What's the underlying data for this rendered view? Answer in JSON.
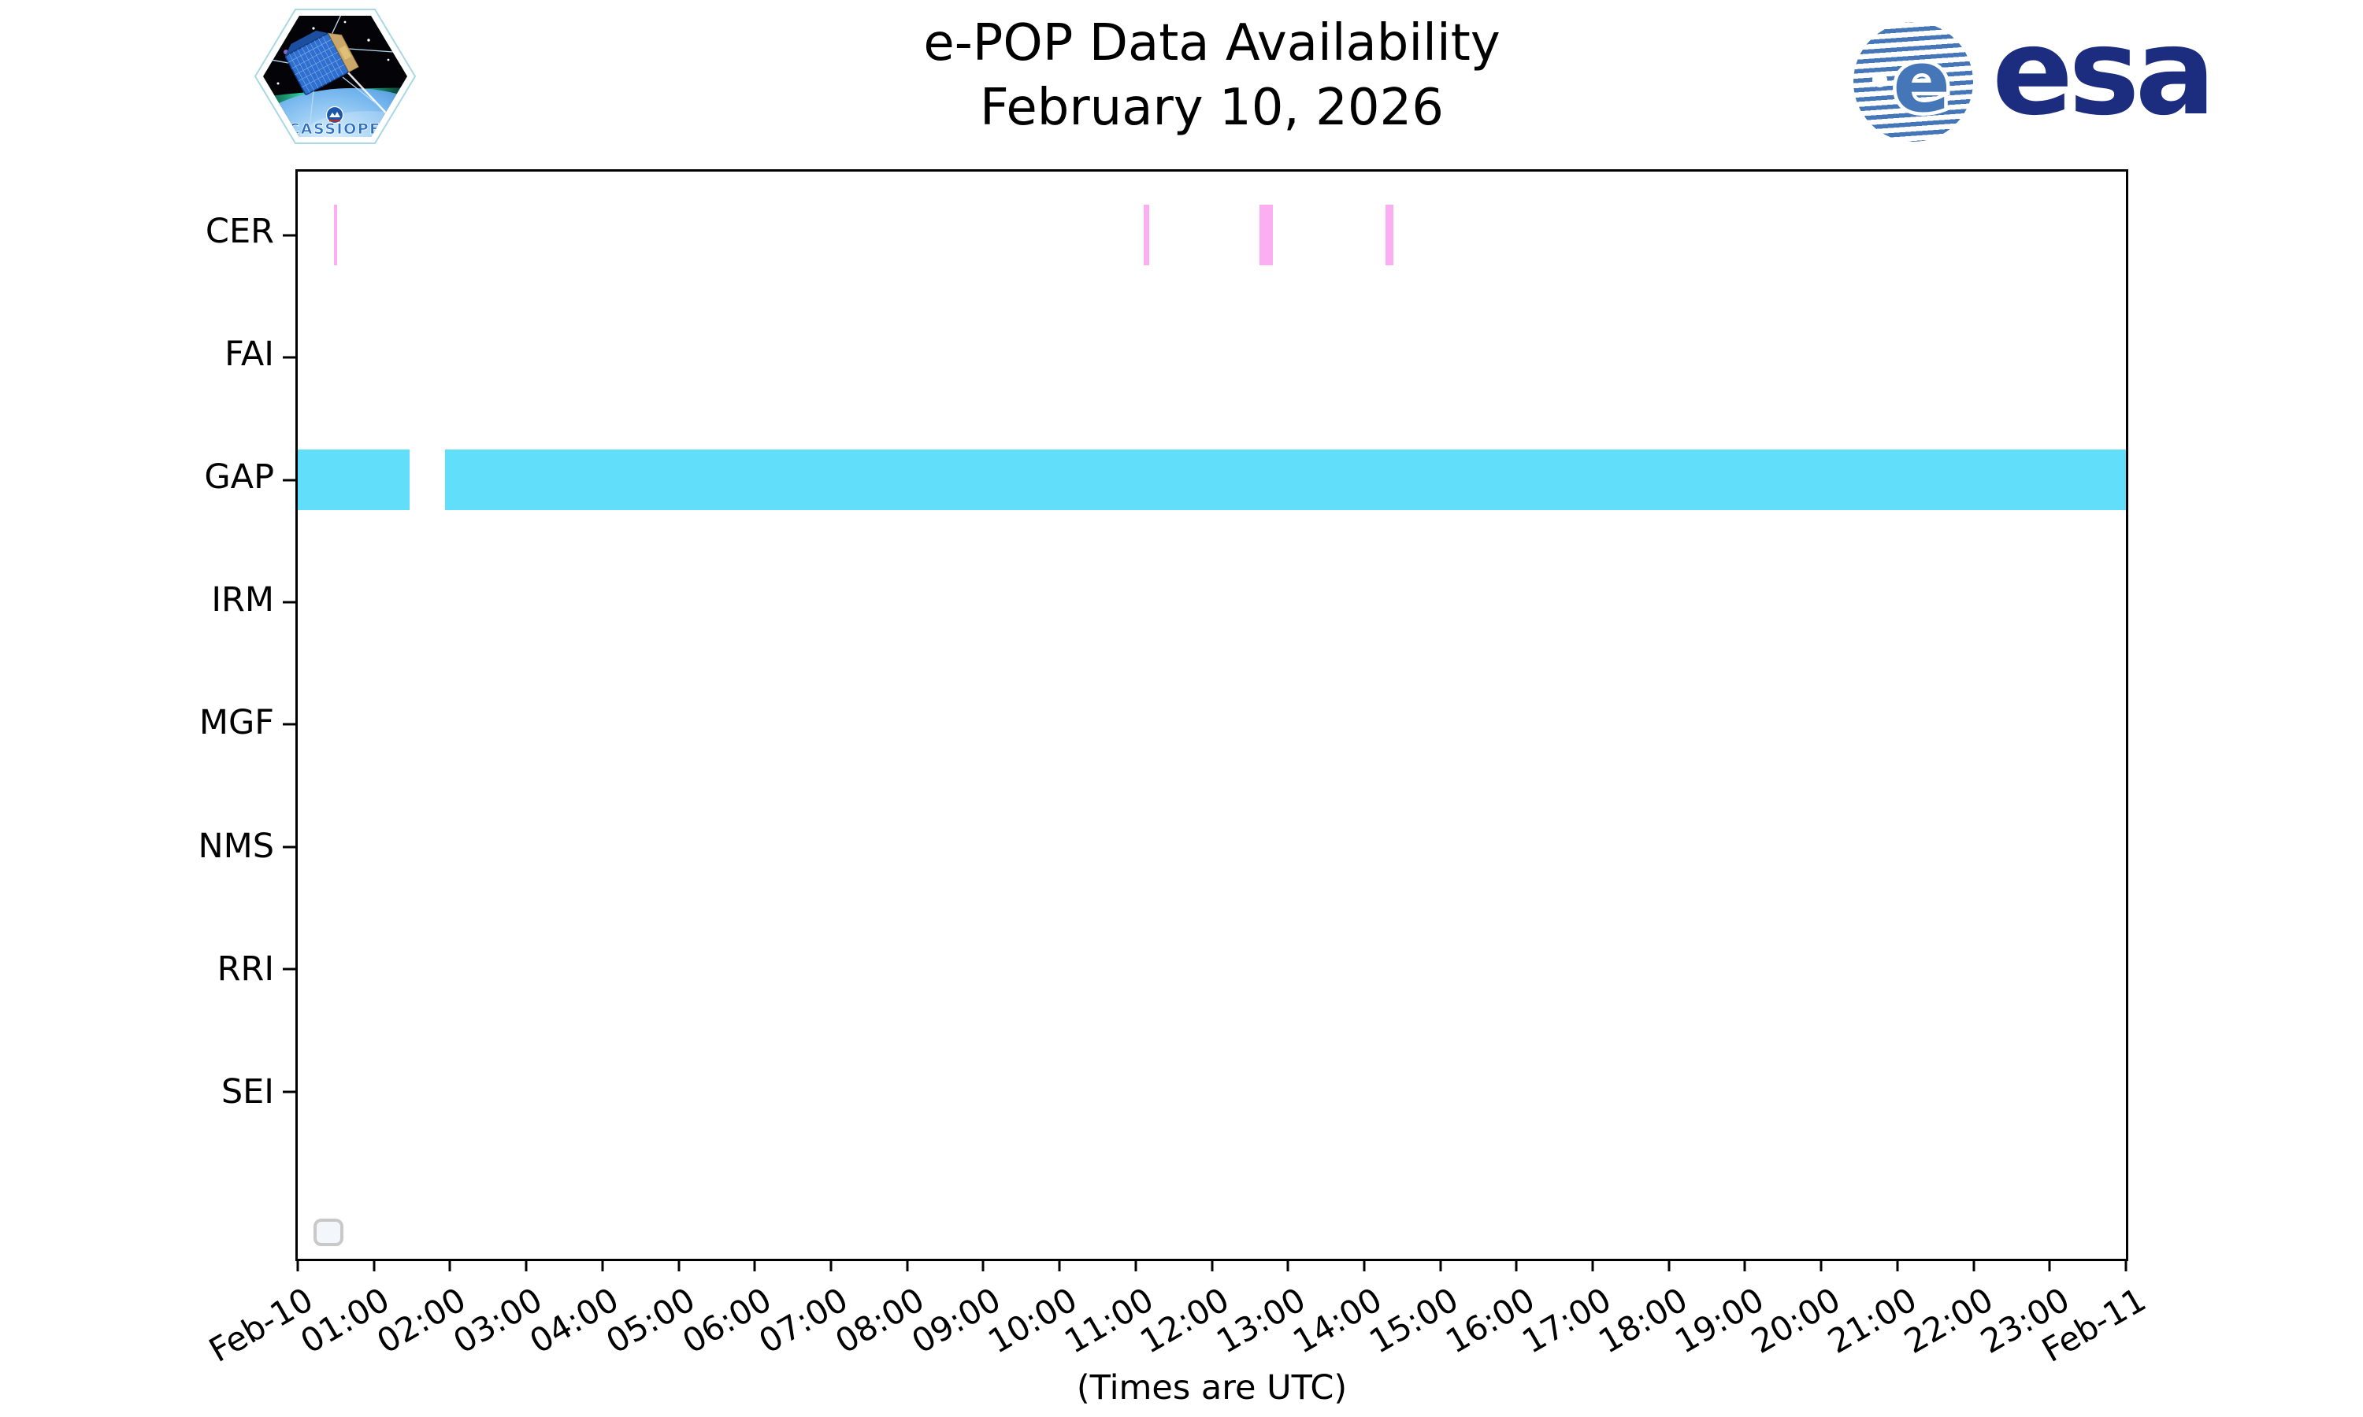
{
  "header": {
    "cassiope_label": "CASSIOPE",
    "esa_wordmark": "esa",
    "esa_e": "e"
  },
  "colors": {
    "cer_bar": "#fcaef2",
    "gap_bar": "#60defa",
    "spine": "#000000",
    "esa_stripe_blue": "#4577b8",
    "esa_navy": "#1c2d80",
    "legend_border": "#c9c9c9",
    "legend_fill": "#f3f6fb"
  },
  "chart_data": {
    "type": "bar",
    "variant": "horizontal-timeline-availability",
    "title": "e-POP Data Availability",
    "subtitle": "February 10, 2026",
    "xlabel": "(Times are UTC)",
    "grid": false,
    "legend": "empty rounded box, bottom-left inside axes",
    "x_range_hours": [
      0,
      24
    ],
    "x_tick_interval_hours": 1,
    "x_tick_labels": [
      "Feb-10",
      "01:00",
      "02:00",
      "03:00",
      "04:00",
      "05:00",
      "06:00",
      "07:00",
      "08:00",
      "09:00",
      "10:00",
      "11:00",
      "12:00",
      "13:00",
      "14:00",
      "15:00",
      "16:00",
      "17:00",
      "18:00",
      "19:00",
      "20:00",
      "21:00",
      "22:00",
      "23:00",
      "Feb-11"
    ],
    "categories": [
      "CER",
      "FAI",
      "GAP",
      "IRM",
      "MGF",
      "NMS",
      "RRI",
      "SEI"
    ],
    "series": [
      {
        "name": "CER",
        "color": "#fcaef2",
        "segments": [
          {
            "start_h": 0.474,
            "end_h": 0.521,
            "start": "00:28",
            "end": "00:31"
          },
          {
            "start_h": 11.105,
            "end_h": 11.173,
            "start": "11:06",
            "end": "11:10"
          },
          {
            "start_h": 12.627,
            "end_h": 12.799,
            "start": "12:38",
            "end": "12:48"
          },
          {
            "start_h": 14.284,
            "end_h": 14.387,
            "start": "14:17",
            "end": "14:23"
          }
        ]
      },
      {
        "name": "FAI",
        "color": "#fcaef2",
        "segments": []
      },
      {
        "name": "GAP",
        "color": "#60defa",
        "segments": [
          {
            "start_h": 0.0,
            "end_h": 1.467,
            "start": "00:00",
            "end": "01:28"
          },
          {
            "start_h": 1.933,
            "end_h": 24.0,
            "start": "01:56",
            "end": "24:00"
          }
        ]
      },
      {
        "name": "IRM",
        "color": "#60defa",
        "segments": []
      },
      {
        "name": "MGF",
        "color": "#fcaef2",
        "segments": []
      },
      {
        "name": "NMS",
        "color": "#fcaef2",
        "segments": []
      },
      {
        "name": "RRI",
        "color": "#60defa",
        "segments": []
      },
      {
        "name": "SEI",
        "color": "#fcaef2",
        "segments": []
      }
    ]
  }
}
